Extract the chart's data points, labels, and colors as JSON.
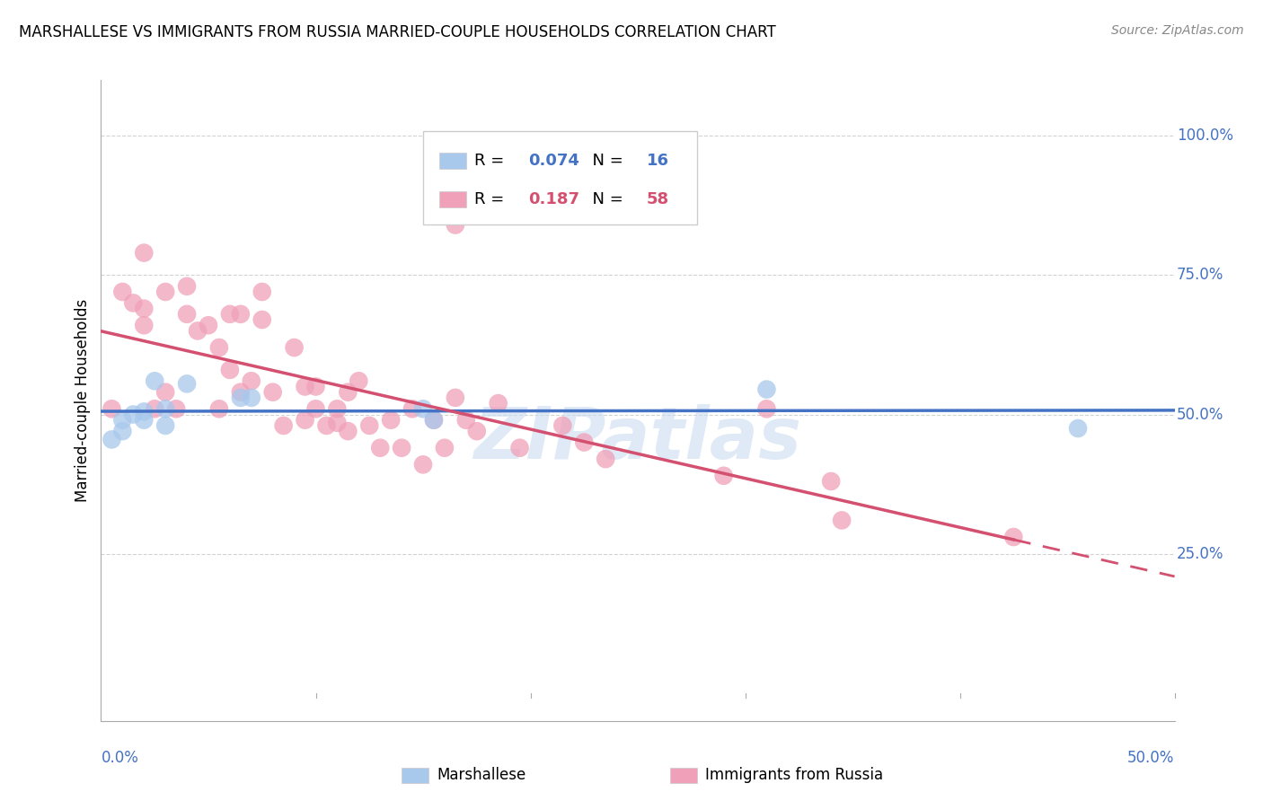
{
  "title": "MARSHALLESE VS IMMIGRANTS FROM RUSSIA MARRIED-COUPLE HOUSEHOLDS CORRELATION CHART",
  "source": "Source: ZipAtlas.com",
  "ylabel": "Married-couple Households",
  "watermark": "ZIPatlas",
  "blue_R": 0.074,
  "blue_N": 16,
  "pink_R": 0.187,
  "pink_N": 58,
  "blue_color": "#a8c8ec",
  "pink_color": "#f0a0b8",
  "blue_line_color": "#4472c4",
  "pink_line_color": "#d45070",
  "xlim": [
    0.0,
    0.5
  ],
  "ylim": [
    -0.05,
    1.1
  ],
  "blue_points_x": [
    0.005,
    0.01,
    0.01,
    0.015,
    0.02,
    0.02,
    0.025,
    0.03,
    0.03,
    0.04,
    0.065,
    0.07,
    0.15,
    0.155,
    0.31,
    0.455
  ],
  "blue_points_y": [
    0.455,
    0.47,
    0.49,
    0.5,
    0.505,
    0.49,
    0.56,
    0.48,
    0.51,
    0.555,
    0.53,
    0.53,
    0.51,
    0.49,
    0.545,
    0.475
  ],
  "pink_points_x": [
    0.005,
    0.01,
    0.015,
    0.02,
    0.02,
    0.02,
    0.025,
    0.03,
    0.03,
    0.035,
    0.04,
    0.04,
    0.045,
    0.05,
    0.055,
    0.055,
    0.06,
    0.06,
    0.065,
    0.065,
    0.07,
    0.075,
    0.075,
    0.08,
    0.085,
    0.09,
    0.095,
    0.095,
    0.1,
    0.1,
    0.105,
    0.11,
    0.11,
    0.115,
    0.115,
    0.12,
    0.125,
    0.13,
    0.135,
    0.14,
    0.145,
    0.15,
    0.155,
    0.16,
    0.165,
    0.165,
    0.17,
    0.175,
    0.185,
    0.195,
    0.215,
    0.225,
    0.235,
    0.29,
    0.31,
    0.34,
    0.345,
    0.425
  ],
  "pink_points_y": [
    0.51,
    0.72,
    0.7,
    0.69,
    0.66,
    0.79,
    0.51,
    0.54,
    0.72,
    0.51,
    0.68,
    0.73,
    0.65,
    0.66,
    0.62,
    0.51,
    0.68,
    0.58,
    0.54,
    0.68,
    0.56,
    0.72,
    0.67,
    0.54,
    0.48,
    0.62,
    0.55,
    0.49,
    0.51,
    0.55,
    0.48,
    0.51,
    0.485,
    0.47,
    0.54,
    0.56,
    0.48,
    0.44,
    0.49,
    0.44,
    0.51,
    0.41,
    0.49,
    0.44,
    0.84,
    0.53,
    0.49,
    0.47,
    0.52,
    0.44,
    0.48,
    0.45,
    0.42,
    0.39,
    0.51,
    0.38,
    0.31,
    0.28
  ]
}
